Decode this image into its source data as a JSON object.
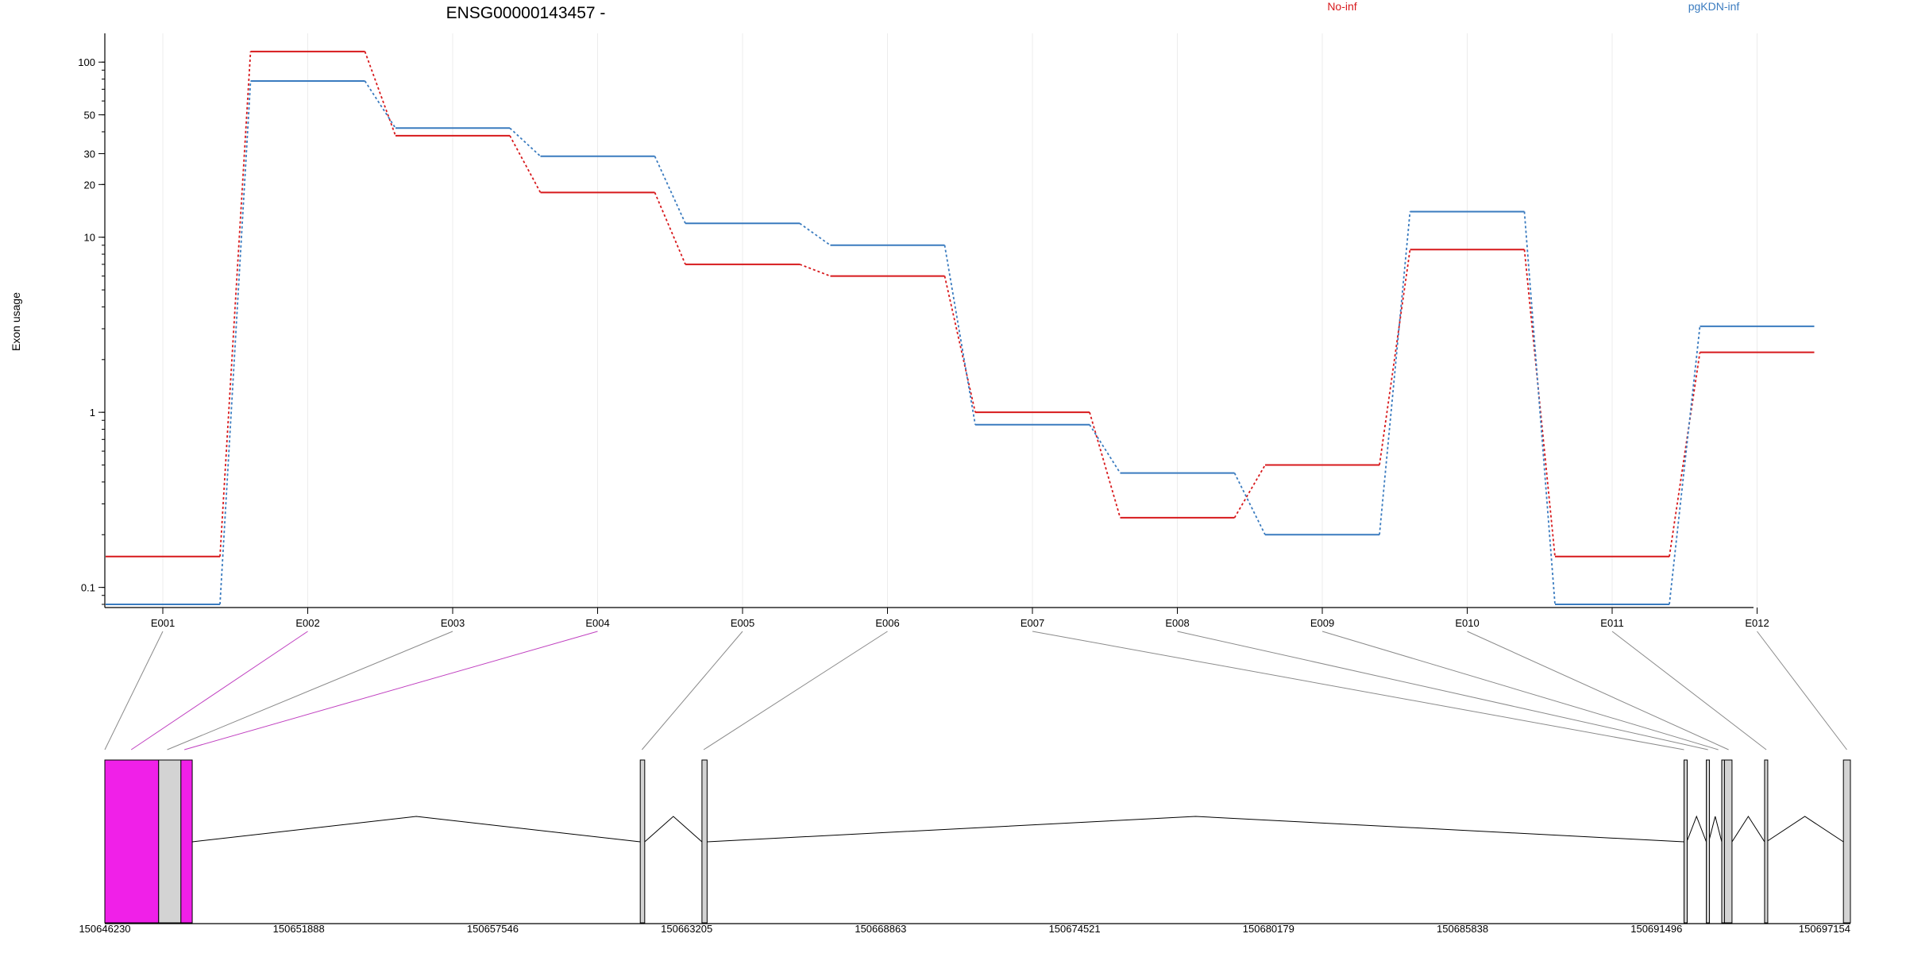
{
  "chart_data": {
    "type": "line",
    "title": "ENSG00000143457 -",
    "ylabel": "Exon usage",
    "y_scale": "log",
    "ylim": [
      0.08,
      140
    ],
    "y_ticks": [
      {
        "value": 0.1,
        "label": "0.1"
      },
      {
        "value": 1,
        "label": "1"
      },
      {
        "value": 10,
        "label": "10"
      },
      {
        "value": 20,
        "label": "20"
      },
      {
        "value": 30,
        "label": "30"
      },
      {
        "value": 50,
        "label": "50"
      },
      {
        "value": 100,
        "label": "100"
      }
    ],
    "categories": [
      "E001",
      "E002",
      "E003",
      "E004",
      "E005",
      "E006",
      "E007",
      "E008",
      "E009",
      "E010",
      "E011",
      "E012"
    ],
    "legend_position": "top",
    "series": [
      {
        "name": "No-inf",
        "color": "#d7191c",
        "values": [
          0.15,
          115,
          38,
          18,
          7,
          6,
          1.0,
          0.25,
          0.5,
          8.5,
          0.15,
          2.2
        ]
      },
      {
        "name": "pgKDN-inf",
        "color": "#3a7bbf",
        "values": [
          0.08,
          78,
          42,
          29,
          12,
          9,
          0.85,
          0.45,
          0.2,
          14,
          0.08,
          3.1
        ]
      }
    ],
    "gene_model": {
      "coord_ticks": [
        "150646230",
        "150651888",
        "150657546",
        "150663205",
        "150668863",
        "150674521",
        "150680179",
        "150685838",
        "150691496",
        "150697154"
      ],
      "coord_start": 150646230,
      "coord_end": 150697154,
      "highlight_color": "#f020e8",
      "exon_color": "#d3d3d3",
      "exons": [
        {
          "id": "E001",
          "start": 150646230,
          "end": 150647800,
          "highlight": true
        },
        {
          "id": "E002",
          "start": 150647800,
          "end": 150648450,
          "highlight": false
        },
        {
          "id": "E003",
          "start": 150648450,
          "end": 150648780,
          "highlight": true
        },
        {
          "id": "E004",
          "start": 150661850,
          "end": 150661980,
          "highlight": false
        },
        {
          "id": "E005",
          "start": 150663650,
          "end": 150663800,
          "highlight": false
        },
        {
          "id": "E006",
          "start": 150692300,
          "end": 150692380,
          "highlight": false
        },
        {
          "id": "E007",
          "start": 150692950,
          "end": 150693020,
          "highlight": false
        },
        {
          "id": "E008",
          "start": 150693400,
          "end": 150693480,
          "highlight": false
        },
        {
          "id": "E009",
          "start": 150693480,
          "end": 150693700,
          "highlight": false
        },
        {
          "id": "E010",
          "start": 150694650,
          "end": 150694700,
          "highlight": false
        },
        {
          "id": "E011",
          "start": 150696950,
          "end": 150697154,
          "highlight": false
        }
      ],
      "connectors": [
        {
          "category": "E001",
          "coord": 150646230,
          "highlight": false
        },
        {
          "category": "E002",
          "coord": 150647000,
          "highlight": true
        },
        {
          "category": "E003",
          "coord": 150648050,
          "highlight": false
        },
        {
          "category": "E004",
          "coord": 150648550,
          "highlight": true
        },
        {
          "category": "E005",
          "coord": 150661900,
          "highlight": false
        },
        {
          "category": "E006",
          "coord": 150663700,
          "highlight": false
        },
        {
          "category": "E007",
          "coord": 150692300,
          "highlight": false
        },
        {
          "category": "E008",
          "coord": 150693000,
          "highlight": false
        },
        {
          "category": "E009",
          "coord": 150693300,
          "highlight": false
        },
        {
          "category": "E010",
          "coord": 150693600,
          "highlight": false
        },
        {
          "category": "E011",
          "coord": 150694700,
          "highlight": false
        },
        {
          "category": "E012",
          "coord": 150697050,
          "highlight": false
        }
      ]
    }
  }
}
